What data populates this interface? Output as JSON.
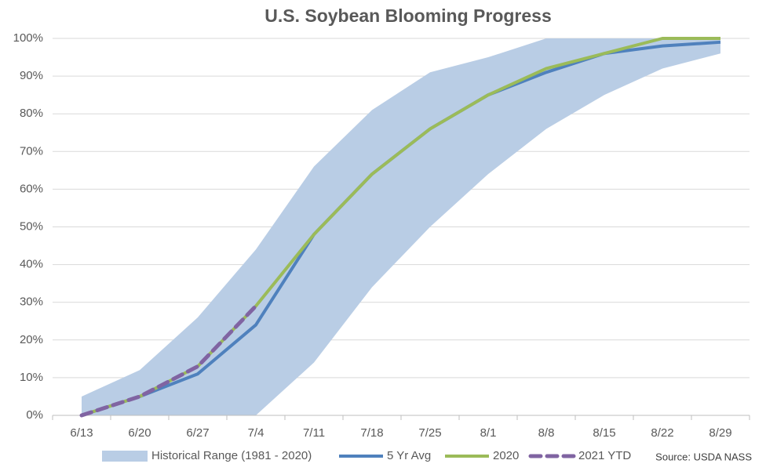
{
  "chart_data": {
    "type": "line",
    "title": "U.S. Soybean Blooming Progress",
    "categories": [
      "6/13",
      "6/20",
      "6/27",
      "7/4",
      "7/11",
      "7/18",
      "7/25",
      "8/1",
      "8/8",
      "8/15",
      "8/22",
      "8/29"
    ],
    "range": {
      "name": "Historical Range (1981 - 2020)",
      "color": "#b9cde5",
      "low": [
        0,
        0,
        0,
        0,
        14,
        34,
        50,
        64,
        76,
        85,
        92,
        96
      ],
      "high": [
        5,
        12,
        26,
        44,
        66,
        81,
        91,
        95,
        100,
        100,
        100,
        100
      ]
    },
    "series": [
      {
        "name": "5 Yr Avg",
        "color": "#4f81bd",
        "dash": false,
        "values": [
          0,
          5,
          11,
          24,
          48,
          64,
          76,
          85,
          91,
          96,
          98,
          99
        ]
      },
      {
        "name": "2020",
        "color": "#9bbb59",
        "dash": false,
        "values": [
          0,
          5,
          13,
          29,
          48,
          64,
          76,
          85,
          92,
          96,
          100,
          100
        ]
      },
      {
        "name": "2021 YTD",
        "color": "#8064a2",
        "dash": true,
        "values": [
          0,
          5,
          13,
          29,
          null,
          null,
          null,
          null,
          null,
          null,
          null,
          null
        ]
      }
    ],
    "ylim": [
      0,
      100
    ],
    "yticks": [
      {
        "value": 0,
        "label": "0%"
      },
      {
        "value": 10,
        "label": "10%"
      },
      {
        "value": 20,
        "label": "20%"
      },
      {
        "value": 30,
        "label": "30%"
      },
      {
        "value": 40,
        "label": "40%"
      },
      {
        "value": 50,
        "label": "50%"
      },
      {
        "value": 60,
        "label": "60%"
      },
      {
        "value": 70,
        "label": "70%"
      },
      {
        "value": 80,
        "label": "80%"
      },
      {
        "value": 90,
        "label": "90%"
      },
      {
        "value": 100,
        "label": "100%"
      }
    ],
    "grid": true,
    "source": "Source: USDA NASS"
  }
}
